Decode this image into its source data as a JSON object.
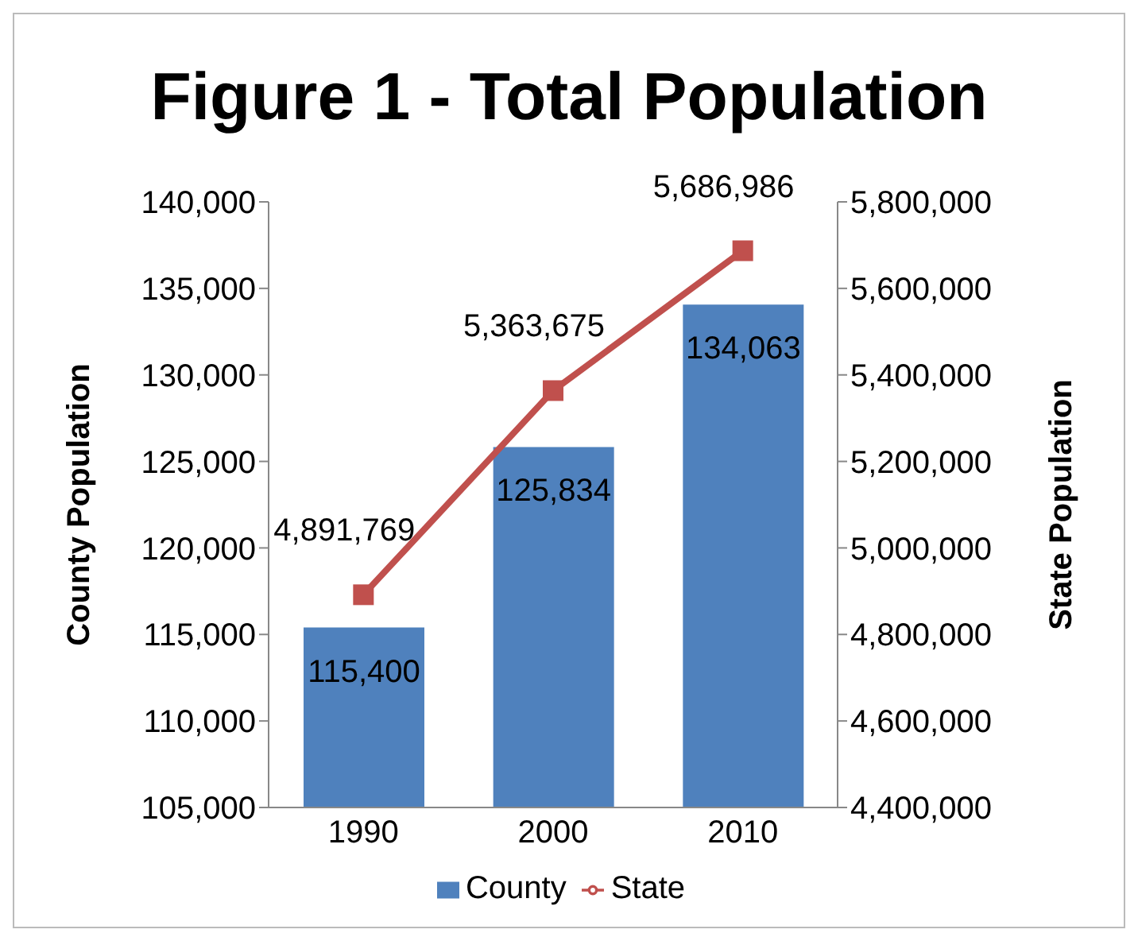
{
  "chart_data": {
    "type": "bar",
    "title": "Figure 1 - Total Population",
    "ylabel": "County Population",
    "y2label": "State Population",
    "categories": [
      "1990",
      "2000",
      "2010"
    ],
    "series": [
      {
        "name": "County",
        "color": "#4f81bd",
        "values": [
          115400,
          125834,
          134063
        ],
        "value_labels": [
          "115,400",
          "125,834",
          "134,063"
        ]
      },
      {
        "name": "State",
        "type": "line",
        "axis": "y2",
        "color": "#c0504d",
        "marker": "square",
        "values": [
          4891769,
          5363675,
          5686986
        ],
        "value_labels": [
          "4,891,769",
          "5,363,675",
          "5,686,986"
        ]
      }
    ],
    "ylim": [
      105000,
      140000
    ],
    "yticks": [
      {
        "value": 105000,
        "label": "105,000"
      },
      {
        "value": 110000,
        "label": "110,000"
      },
      {
        "value": 115000,
        "label": "115,000"
      },
      {
        "value": 120000,
        "label": "120,000"
      },
      {
        "value": 125000,
        "label": "125,000"
      },
      {
        "value": 130000,
        "label": "130,000"
      },
      {
        "value": 135000,
        "label": "135,000"
      },
      {
        "value": 140000,
        "label": "140,000"
      }
    ],
    "y2lim": [
      4400000,
      5800000
    ],
    "y2ticks": [
      {
        "value": 4400000,
        "label": "4,400,000"
      },
      {
        "value": 4600000,
        "label": "4,600,000"
      },
      {
        "value": 4800000,
        "label": "4,800,000"
      },
      {
        "value": 5000000,
        "label": "5,000,000"
      },
      {
        "value": 5200000,
        "label": "5,200,000"
      },
      {
        "value": 5400000,
        "label": "5,400,000"
      },
      {
        "value": 5600000,
        "label": "5,600,000"
      },
      {
        "value": 5800000,
        "label": "5,800,000"
      }
    ],
    "legend": "bottom",
    "grid": false
  }
}
